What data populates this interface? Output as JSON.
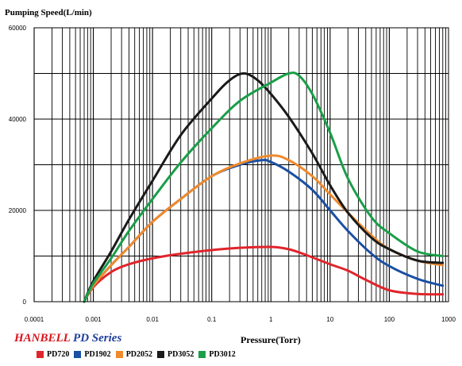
{
  "chart_data": {
    "type": "line",
    "title": "",
    "ylabel": "Pumping Speed(L/min)",
    "xlabel": "Pressure(Torr)",
    "x_scale": "log",
    "xlim": [
      0.0001,
      1000
    ],
    "ylim": [
      0,
      60000
    ],
    "x_ticks": [
      "0.0001",
      "0.001",
      "0.01",
      "0.1",
      "1",
      "10",
      "100",
      "1000"
    ],
    "y_ticks": [
      "0",
      "20000",
      "40000",
      "60000"
    ],
    "grid": true,
    "legend_position": "bottom-left",
    "series": [
      {
        "name": "PD720",
        "color": "#e0252b",
        "points": [
          [
            0.0007,
            0
          ],
          [
            0.001,
            3200
          ],
          [
            0.002,
            6500
          ],
          [
            0.004,
            8200
          ],
          [
            0.01,
            9500
          ],
          [
            0.03,
            10500
          ],
          [
            0.1,
            11300
          ],
          [
            0.3,
            11800
          ],
          [
            1,
            12000
          ],
          [
            2,
            11500
          ],
          [
            4,
            10200
          ],
          [
            10,
            8200
          ],
          [
            20,
            6800
          ],
          [
            40,
            4800
          ],
          [
            100,
            2500
          ],
          [
            300,
            1700
          ],
          [
            800,
            1600
          ]
        ]
      },
      {
        "name": "PD1902",
        "color": "#1a4fa3",
        "points": [
          [
            0.0007,
            0
          ],
          [
            0.001,
            3500
          ],
          [
            0.002,
            8000
          ],
          [
            0.004,
            12000
          ],
          [
            0.01,
            17500
          ],
          [
            0.03,
            22500
          ],
          [
            0.1,
            27500
          ],
          [
            0.3,
            30000
          ],
          [
            0.7,
            31000
          ],
          [
            1,
            30600
          ],
          [
            2,
            28500
          ],
          [
            5,
            24500
          ],
          [
            10,
            20000
          ],
          [
            20,
            15500
          ],
          [
            50,
            10500
          ],
          [
            100,
            7800
          ],
          [
            300,
            5000
          ],
          [
            800,
            3500
          ]
        ]
      },
      {
        "name": "PD2052",
        "color": "#f08a2c",
        "points": [
          [
            0.0007,
            0
          ],
          [
            0.001,
            3500
          ],
          [
            0.002,
            8000
          ],
          [
            0.004,
            12000
          ],
          [
            0.01,
            17500
          ],
          [
            0.03,
            22500
          ],
          [
            0.1,
            27500
          ],
          [
            0.3,
            30300
          ],
          [
            1,
            32000
          ],
          [
            2,
            31000
          ],
          [
            5,
            27500
          ],
          [
            10,
            23500
          ],
          [
            20,
            19500
          ],
          [
            50,
            14500
          ],
          [
            100,
            11500
          ],
          [
            300,
            9000
          ],
          [
            800,
            8000
          ]
        ]
      },
      {
        "name": "PD3052",
        "color": "#1a1a1a",
        "points": [
          [
            0.0007,
            0
          ],
          [
            0.001,
            4500
          ],
          [
            0.002,
            11000
          ],
          [
            0.004,
            18000
          ],
          [
            0.01,
            26500
          ],
          [
            0.03,
            36500
          ],
          [
            0.1,
            44500
          ],
          [
            0.2,
            48500
          ],
          [
            0.35,
            50000
          ],
          [
            0.6,
            48500
          ],
          [
            1,
            45500
          ],
          [
            2,
            40500
          ],
          [
            5,
            32500
          ],
          [
            10,
            25500
          ],
          [
            20,
            19500
          ],
          [
            50,
            14000
          ],
          [
            100,
            11500
          ],
          [
            300,
            9000
          ],
          [
            800,
            8500
          ]
        ]
      },
      {
        "name": "PD3012",
        "color": "#1a9e48",
        "points": [
          [
            0.0007,
            0
          ],
          [
            0.001,
            4000
          ],
          [
            0.002,
            9500
          ],
          [
            0.004,
            15500
          ],
          [
            0.01,
            22500
          ],
          [
            0.03,
            30500
          ],
          [
            0.1,
            38000
          ],
          [
            0.3,
            44000
          ],
          [
            1,
            48000
          ],
          [
            2,
            50000
          ],
          [
            3,
            49500
          ],
          [
            5,
            45500
          ],
          [
            10,
            37000
          ],
          [
            20,
            27000
          ],
          [
            50,
            18500
          ],
          [
            100,
            15000
          ],
          [
            300,
            11000
          ],
          [
            800,
            10000
          ]
        ]
      }
    ]
  },
  "brand": {
    "name": "HANBELL",
    "series": "PD Series"
  }
}
